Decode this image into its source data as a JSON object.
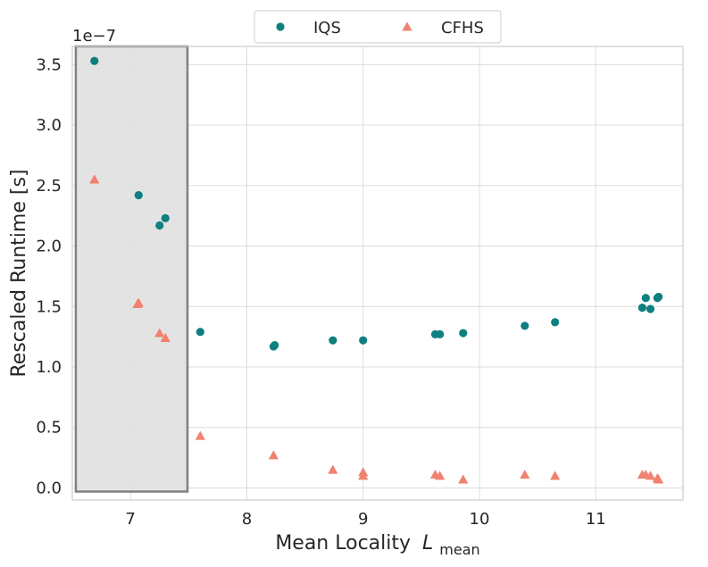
{
  "chart_data": {
    "type": "scatter",
    "title": "",
    "xlabel": "Mean Locality",
    "xlabel_symbol": "L",
    "xlabel_subscript": "mean",
    "ylabel": "Rescaled Runtime [s]",
    "y_offset_label": "1e−7",
    "xlim": [
      6.5,
      11.75
    ],
    "ylim": [
      -0.1,
      3.65
    ],
    "x_ticks": [
      7,
      8,
      9,
      10,
      11
    ],
    "x_tick_labels": [
      "7",
      "8",
      "9",
      "10",
      "11"
    ],
    "y_ticks": [
      0.0,
      0.5,
      1.0,
      1.5,
      2.0,
      2.5,
      3.0,
      3.5
    ],
    "y_tick_labels": [
      "0.0",
      "0.5",
      "1.0",
      "1.5",
      "2.0",
      "2.5",
      "3.0",
      "3.5"
    ],
    "grid": true,
    "legend_position": "top-center",
    "highlight_region": {
      "x": [
        6.53,
        7.49
      ],
      "y": [
        -0.03,
        3.65
      ],
      "color": "#e0e0e0"
    },
    "series": [
      {
        "name": "IQS",
        "marker": "circle",
        "color": "#0f7f7f",
        "points": [
          [
            6.69,
            3.53
          ],
          [
            7.07,
            2.42
          ],
          [
            7.25,
            2.17
          ],
          [
            7.3,
            2.23
          ],
          [
            7.6,
            1.29
          ],
          [
            8.23,
            1.17
          ],
          [
            8.24,
            1.18
          ],
          [
            8.74,
            1.22
          ],
          [
            9.0,
            1.22
          ],
          [
            9.62,
            1.27
          ],
          [
            9.66,
            1.27
          ],
          [
            9.86,
            1.28
          ],
          [
            10.39,
            1.34
          ],
          [
            10.65,
            1.37
          ],
          [
            11.4,
            1.49
          ],
          [
            11.43,
            1.57
          ],
          [
            11.47,
            1.48
          ],
          [
            11.53,
            1.57
          ],
          [
            11.54,
            1.58
          ]
        ]
      },
      {
        "name": "CFHS",
        "marker": "triangle",
        "color": "#f0826f",
        "points": [
          [
            6.69,
            2.55
          ],
          [
            7.06,
            1.52
          ],
          [
            7.07,
            1.53
          ],
          [
            7.25,
            1.28
          ],
          [
            7.3,
            1.24
          ],
          [
            7.6,
            0.43
          ],
          [
            8.23,
            0.27
          ],
          [
            8.74,
            0.15
          ],
          [
            9.0,
            0.13
          ],
          [
            9.0,
            0.1
          ],
          [
            9.62,
            0.11
          ],
          [
            9.66,
            0.1
          ],
          [
            9.86,
            0.07
          ],
          [
            10.39,
            0.11
          ],
          [
            10.65,
            0.1
          ],
          [
            11.4,
            0.11
          ],
          [
            11.43,
            0.11
          ],
          [
            11.47,
            0.1
          ],
          [
            11.53,
            0.08
          ],
          [
            11.54,
            0.07
          ]
        ]
      }
    ]
  }
}
